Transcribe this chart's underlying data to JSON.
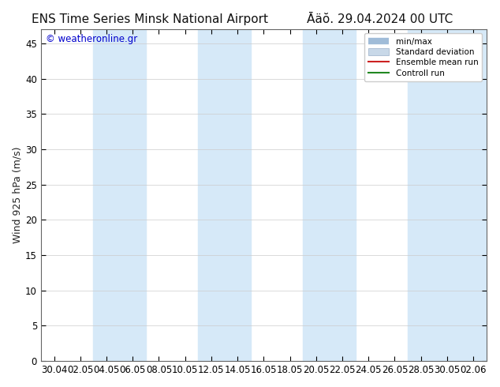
{
  "title_left": "ENS Time Series Minsk National Airport",
  "title_right": "Āäŏ. 29.04.2024 00 UTC",
  "ylabel": "Wind 925 hPa (m/s)",
  "watermark": "© weatheronline.gr",
  "watermark_color": "#0000cc",
  "ylim": [
    0,
    47
  ],
  "yticks": [
    0,
    5,
    10,
    15,
    20,
    25,
    30,
    35,
    40,
    45
  ],
  "xtick_labels": [
    "30.04",
    "02.05",
    "04.05",
    "06.05",
    "08.05",
    "10.05",
    "12.05",
    "14.05",
    "16.05",
    "18.05",
    "20.05",
    "22.05",
    "24.05",
    "26.05",
    "28.05",
    "30.05",
    "02.06"
  ],
  "background_color": "#ffffff",
  "plot_bg_color": "#ffffff",
  "shaded_band_color": "#d6e9f8",
  "grid_color": "#cccccc",
  "legend_minmax_color": "#a0bcd8",
  "legend_std_facecolor": "#c8d8e8",
  "legend_std_edgecolor": "#9ab0c8",
  "legend_ens_color": "#cc2222",
  "legend_ctrl_color": "#228822",
  "title_fontsize": 11,
  "tick_label_fontsize": 8.5,
  "axis_label_fontsize": 9,
  "legend_fontsize": 7.5
}
